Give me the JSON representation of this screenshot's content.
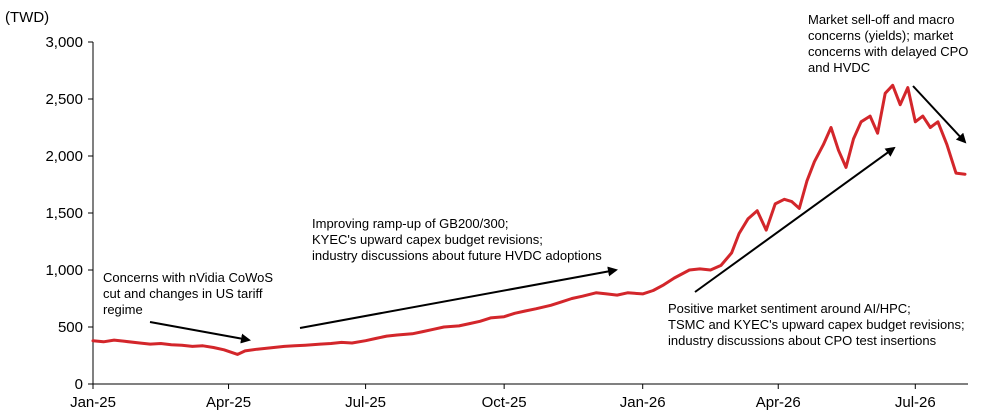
{
  "chart_data": {
    "type": "line",
    "ylabel": "(TWD)",
    "ylim": [
      0,
      3000
    ],
    "yticks": [
      0,
      500,
      1000,
      1500,
      2000,
      2500,
      3000
    ],
    "ytick_labels": [
      "0",
      "500",
      "1,000",
      "1,500",
      "2,000",
      "2,500",
      "3,000"
    ],
    "xlim": [
      "2025-01-01",
      "2026-08-05"
    ],
    "xticks": [
      "2025-01-01",
      "2025-04-01",
      "2025-07-01",
      "2025-10-01",
      "2026-01-01",
      "2026-04-01",
      "2026-07-01"
    ],
    "xtick_labels": [
      "Jan-25",
      "Apr-25",
      "Jul-25",
      "Oct-25",
      "Jan-26",
      "Apr-26",
      "Jul-26"
    ],
    "color": "#d3262b",
    "series": [
      {
        "x": [
          "2025-01-01",
          "2025-01-08",
          "2025-01-15",
          "2025-01-22",
          "2025-02-01",
          "2025-02-08",
          "2025-02-15",
          "2025-02-22",
          "2025-03-01",
          "2025-03-08",
          "2025-03-15",
          "2025-03-22",
          "2025-03-29",
          "2025-04-07",
          "2025-04-12",
          "2025-04-20",
          "2025-05-01",
          "2025-05-08",
          "2025-05-15",
          "2025-05-22",
          "2025-06-01",
          "2025-06-08",
          "2025-06-15",
          "2025-06-22",
          "2025-07-01",
          "2025-07-08",
          "2025-07-15",
          "2025-07-22",
          "2025-08-01",
          "2025-08-08",
          "2025-08-15",
          "2025-08-22",
          "2025-09-01",
          "2025-09-08",
          "2025-09-15",
          "2025-09-22",
          "2025-10-01",
          "2025-10-08",
          "2025-10-15",
          "2025-10-22",
          "2025-11-01",
          "2025-11-08",
          "2025-11-15",
          "2025-11-22",
          "2025-12-01",
          "2025-12-08",
          "2025-12-15",
          "2025-12-22",
          "2026-01-01",
          "2026-01-08",
          "2026-01-15",
          "2026-01-22",
          "2026-02-01",
          "2026-02-08",
          "2026-02-15",
          "2026-02-22",
          "2026-03-01",
          "2026-03-06",
          "2026-03-12",
          "2026-03-18",
          "2026-03-24",
          "2026-03-30",
          "2026-04-05",
          "2026-04-10",
          "2026-04-15",
          "2026-04-20",
          "2026-04-25",
          "2026-05-01",
          "2026-05-06",
          "2026-05-11",
          "2026-05-16",
          "2026-05-21",
          "2026-05-26",
          "2026-06-01",
          "2026-06-06",
          "2026-06-11",
          "2026-06-16",
          "2026-06-21",
          "2026-06-26",
          "2026-07-01",
          "2026-07-06",
          "2026-07-11",
          "2026-07-16",
          "2026-07-22",
          "2026-07-28",
          "2026-08-03"
        ],
        "values": [
          380,
          370,
          385,
          375,
          360,
          350,
          355,
          345,
          340,
          330,
          335,
          320,
          300,
          260,
          290,
          305,
          320,
          330,
          335,
          340,
          350,
          355,
          365,
          360,
          380,
          400,
          420,
          430,
          440,
          460,
          480,
          500,
          510,
          530,
          550,
          580,
          590,
          620,
          640,
          660,
          690,
          720,
          750,
          770,
          800,
          790,
          780,
          800,
          790,
          820,
          870,
          930,
          1000,
          1010,
          1000,
          1040,
          1150,
          1320,
          1450,
          1520,
          1350,
          1580,
          1620,
          1600,
          1540,
          1780,
          1950,
          2100,
          2250,
          2050,
          1900,
          2150,
          2300,
          2350,
          2200,
          2550,
          2620,
          2450,
          2600,
          2300,
          2350,
          2250,
          2300,
          2100,
          1850,
          1840
        ]
      }
    ],
    "annotations": [
      {
        "lines": [
          "Concerns with nVidia CoWoS",
          "cut and changes in US tariff",
          "regime"
        ]
      },
      {
        "lines": [
          "Improving ramp-up of GB200/300;",
          "KYEC's upward capex budget revisions;",
          "industry discussions about future HVDC adoptions"
        ]
      },
      {
        "lines": [
          "Positive market sentiment around AI/HPC;",
          "TSMC and KYEC's upward capex budget revisions;",
          "industry discussions about CPO test insertions"
        ]
      },
      {
        "lines": [
          "Market sell-off and macro",
          "concerns (yields); market",
          "concerns with delayed CPO",
          "and HVDC"
        ]
      }
    ]
  }
}
